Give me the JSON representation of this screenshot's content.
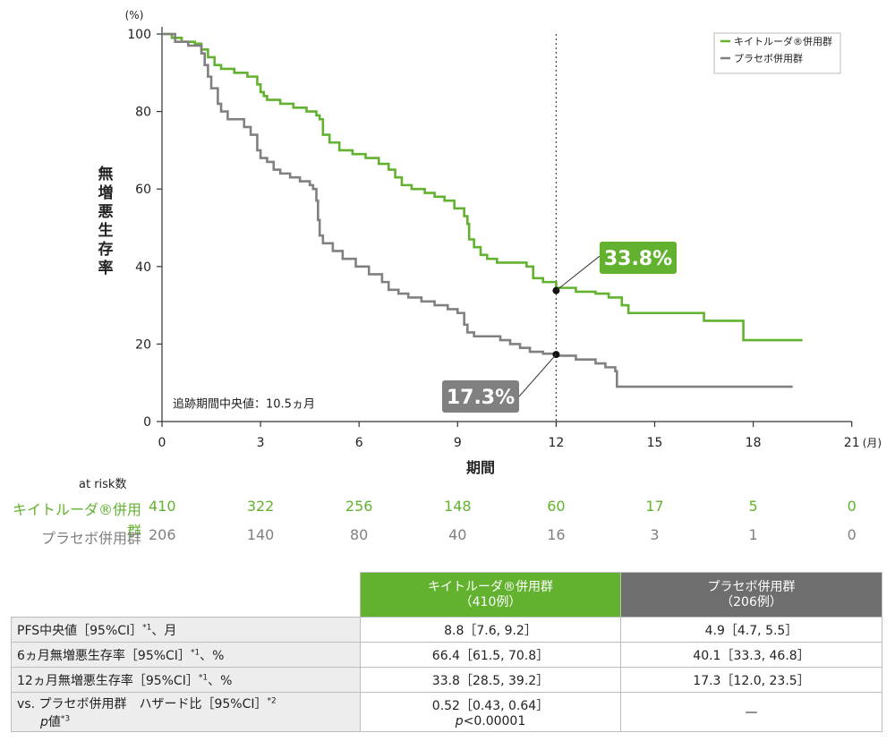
{
  "chart_data": {
    "type": "line",
    "subtype": "kaplan-meier",
    "ylabel": "無増悪生存率",
    "y_unit": "(%)",
    "xlabel": "期間",
    "x_unit": "(月)",
    "xticks": [
      0,
      3,
      6,
      9,
      12,
      15,
      18,
      21
    ],
    "yticks": [
      0,
      20,
      40,
      60,
      80,
      100
    ],
    "xlim": [
      0,
      21
    ],
    "ylim": [
      0,
      100
    ],
    "grid": false,
    "legend_position": "top-right",
    "reference_line_x": 12,
    "annotation_followup": "追跡期間中央値：10.5ヵ月",
    "series": [
      {
        "name": "キイトルーダ®併用群",
        "color": "#62b22f",
        "callout": "33.8%",
        "callout_value": 33.8,
        "points": [
          [
            0,
            100
          ],
          [
            0.3,
            99
          ],
          [
            0.6,
            98
          ],
          [
            1.0,
            97.5
          ],
          [
            1.2,
            96
          ],
          [
            1.4,
            94
          ],
          [
            1.6,
            92
          ],
          [
            1.8,
            91
          ],
          [
            2.2,
            90
          ],
          [
            2.6,
            89
          ],
          [
            2.9,
            87
          ],
          [
            3.0,
            85
          ],
          [
            3.1,
            84
          ],
          [
            3.2,
            83
          ],
          [
            3.6,
            82
          ],
          [
            4.0,
            81
          ],
          [
            4.4,
            80
          ],
          [
            4.7,
            79
          ],
          [
            4.8,
            78
          ],
          [
            4.9,
            74
          ],
          [
            5.1,
            72
          ],
          [
            5.4,
            70
          ],
          [
            5.8,
            69
          ],
          [
            6.2,
            68
          ],
          [
            6.6,
            66.5
          ],
          [
            6.9,
            65
          ],
          [
            7.1,
            63
          ],
          [
            7.3,
            61
          ],
          [
            7.6,
            60
          ],
          [
            8.0,
            59
          ],
          [
            8.3,
            58
          ],
          [
            8.6,
            57
          ],
          [
            8.9,
            55
          ],
          [
            9.2,
            53
          ],
          [
            9.3,
            51
          ],
          [
            9.35,
            47
          ],
          [
            9.5,
            45
          ],
          [
            9.7,
            43
          ],
          [
            9.9,
            42
          ],
          [
            10.2,
            41
          ],
          [
            10.6,
            41
          ],
          [
            11.1,
            40
          ],
          [
            11.3,
            37
          ],
          [
            11.6,
            36
          ],
          [
            12.0,
            34.5
          ],
          [
            12.6,
            33.5
          ],
          [
            13.2,
            33
          ],
          [
            13.6,
            32
          ],
          [
            14.0,
            30
          ],
          [
            14.2,
            28
          ],
          [
            15.0,
            28
          ],
          [
            16.4,
            28
          ],
          [
            16.5,
            26
          ],
          [
            17.6,
            26
          ],
          [
            17.7,
            21
          ],
          [
            19.0,
            21
          ],
          [
            19.5,
            21
          ]
        ]
      },
      {
        "name": "プラセボ併用群",
        "color": "#808080",
        "callout": "17.3%",
        "callout_value": 17.3,
        "points": [
          [
            0,
            100
          ],
          [
            0.4,
            98
          ],
          [
            0.8,
            97
          ],
          [
            1.2,
            95
          ],
          [
            1.3,
            92
          ],
          [
            1.4,
            89
          ],
          [
            1.5,
            86
          ],
          [
            1.7,
            82
          ],
          [
            1.8,
            80
          ],
          [
            2.0,
            78
          ],
          [
            2.3,
            78
          ],
          [
            2.5,
            76
          ],
          [
            2.7,
            74
          ],
          [
            2.9,
            70
          ],
          [
            3.0,
            68
          ],
          [
            3.2,
            67
          ],
          [
            3.4,
            65
          ],
          [
            3.6,
            64
          ],
          [
            3.9,
            63
          ],
          [
            4.2,
            62
          ],
          [
            4.5,
            61
          ],
          [
            4.6,
            60
          ],
          [
            4.7,
            57
          ],
          [
            4.75,
            52
          ],
          [
            4.8,
            48
          ],
          [
            4.9,
            46
          ],
          [
            5.2,
            44
          ],
          [
            5.5,
            42
          ],
          [
            5.9,
            40
          ],
          [
            6.3,
            38
          ],
          [
            6.7,
            36
          ],
          [
            6.9,
            34
          ],
          [
            7.2,
            33
          ],
          [
            7.5,
            32
          ],
          [
            7.9,
            31
          ],
          [
            8.3,
            30
          ],
          [
            8.7,
            29
          ],
          [
            9.0,
            28
          ],
          [
            9.2,
            25
          ],
          [
            9.3,
            23
          ],
          [
            9.5,
            22
          ],
          [
            10.3,
            21
          ],
          [
            10.6,
            20
          ],
          [
            10.9,
            19
          ],
          [
            11.2,
            18
          ],
          [
            11.6,
            17.5
          ],
          [
            12.0,
            17
          ],
          [
            12.6,
            16
          ],
          [
            13.2,
            15
          ],
          [
            13.5,
            14
          ],
          [
            13.8,
            13
          ],
          [
            13.85,
            9
          ],
          [
            14.5,
            9
          ],
          [
            19.2,
            9
          ]
        ]
      }
    ]
  },
  "risk_table": {
    "title": "at risk数",
    "time_points": [
      0,
      3,
      6,
      9,
      12,
      15,
      18,
      21
    ],
    "rows": [
      {
        "label": "キイトルーダ®併用群",
        "counts": [
          "410",
          "322",
          "256",
          "148",
          "60",
          "17",
          "5",
          "0"
        ]
      },
      {
        "label": "プラセボ併用群",
        "counts": [
          "206",
          "140",
          "80",
          "40",
          "16",
          "3",
          "1",
          "0"
        ]
      }
    ]
  },
  "results_table": {
    "header_green_line1": "キイトルーダ®併用群",
    "header_green_line2": "（410例）",
    "header_gray_line1": "プラセボ併用群",
    "header_gray_line2": "（206例）",
    "rows": [
      {
        "label": "PFS中央値［95%CI］",
        "sup": "*1",
        "suffix": "、月",
        "green": "8.8［7.6, 9.2］",
        "gray": "4.9［4.7, 5.5］"
      },
      {
        "label": "6ヵ月無増悪生存率［95%CI］",
        "sup": "*1",
        "suffix": "、%",
        "green": "66.4［61.5, 70.8］",
        "gray": "40.1［33.3, 46.8］"
      },
      {
        "label": "12ヵ月無増悪生存率［95%CI］",
        "sup": "*1",
        "suffix": "、%",
        "green": "33.8［28.5, 39.2］",
        "gray": "17.3［12.0, 23.5］"
      }
    ],
    "last_row": {
      "label_line1": "vs. プラセボ併用群　ハザード比［95%CI］",
      "sup1": "*2",
      "label_line2_italic": "p",
      "label_line2": "値",
      "sup2": "*3",
      "green_line1": "0.52［0.43, 0.64］",
      "green_line2_italic": "p",
      "green_line2": "<0.00001",
      "gray": "—"
    }
  }
}
